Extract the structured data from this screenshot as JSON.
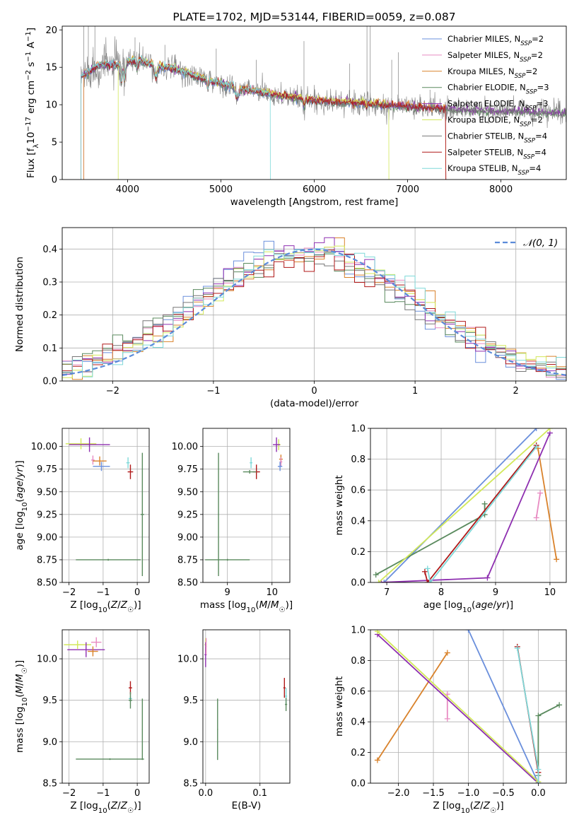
{
  "colors": {
    "observed": "#808080",
    "chabrier_miles": "#6a8fdc",
    "salpeter_miles": "#e88bc2",
    "kroupa_miles": "#d9822b",
    "chabrier_elodie": "#5a8a5e",
    "salpeter_elodie": "#8e2fb0",
    "kroupa_elodie": "#d2e85a",
    "chabrier_stelib": "#777777",
    "salpeter_stelib": "#b01818",
    "kroupa_stelib": "#7fd9d9"
  },
  "chart_data": [
    {
      "id": "spectrum",
      "type": "line",
      "title": "PLATE=1702, MJD=53144, FIBERID=0059, z=0.087",
      "xlabel": "wavelength [Angstrom, rest frame]",
      "ylabel": "Flux [f_λ 10^-17 erg cm^-2 s^-1 A^-1]",
      "xlim": [
        3300,
        8700
      ],
      "ylim": [
        0,
        20.5
      ],
      "xticks": [
        4000,
        5000,
        6000,
        7000,
        8000
      ],
      "yticks": [
        0,
        5,
        10,
        15,
        20
      ],
      "grid": false,
      "legend_position": "top-right",
      "continuum": [
        [
          3500,
          13.8
        ],
        [
          3700,
          15.3
        ],
        [
          3900,
          15.4
        ],
        [
          4100,
          16.0
        ],
        [
          4300,
          15.2
        ],
        [
          4500,
          14.8
        ],
        [
          4800,
          13.5
        ],
        [
          5000,
          12.8
        ],
        [
          5200,
          12.2
        ],
        [
          5500,
          11.5
        ],
        [
          6000,
          10.6
        ],
        [
          6500,
          10.2
        ],
        [
          7000,
          9.8
        ],
        [
          7500,
          9.4
        ],
        [
          8000,
          9.2
        ],
        [
          8500,
          9.0
        ],
        [
          8700,
          8.9
        ]
      ],
      "series": [
        {
          "name": "Chabrier MILES",
          "nssp": "2",
          "color_key": "chabrier_miles"
        },
        {
          "name": "Salpeter MILES",
          "nssp": "2",
          "color_key": "salpeter_miles"
        },
        {
          "name": "Kroupa MILES",
          "nssp": "2",
          "color_key": "kroupa_miles"
        },
        {
          "name": "Chabrier ELODIE",
          "nssp": "3",
          "color_key": "chabrier_elodie"
        },
        {
          "name": "Salpeter ELODIE",
          "nssp": "3",
          "color_key": "salpeter_elodie"
        },
        {
          "name": "Kroupa ELODIE",
          "nssp": "2",
          "color_key": "kroupa_elodie"
        },
        {
          "name": "Chabrier STELIB",
          "nssp": "4",
          "color_key": "chabrier_stelib"
        },
        {
          "name": "Salpeter STELIB",
          "nssp": "4",
          "color_key": "salpeter_stelib"
        },
        {
          "name": "Kroupa STELIB",
          "nssp": "4",
          "color_key": "kroupa_stelib"
        }
      ]
    },
    {
      "id": "residuals",
      "type": "histogram",
      "xlabel": "(data-model)/error",
      "ylabel": "Normed distribution",
      "xlim": [
        -2.5,
        2.5
      ],
      "ylim": [
        0,
        0.465
      ],
      "xticks": [
        -2,
        -1,
        0,
        1,
        2
      ],
      "yticks": [
        0.0,
        0.1,
        0.2,
        0.3,
        0.4
      ],
      "grid": true,
      "legend_position": "top-right",
      "reference": {
        "name": "𝒩(0, 1)",
        "mean": 0,
        "sigma": 1
      },
      "bin_width": 0.1
    },
    {
      "id": "age_vs_z",
      "type": "errorbar",
      "xlabel": "Z [log10(Z/Z☉)]",
      "ylabel": "age [log10(age/yr)]",
      "xlim": [
        -2.2,
        0.35
      ],
      "ylim": [
        8.5,
        10.2
      ],
      "xticks": [
        -2,
        -1,
        0
      ],
      "yticks": [
        8.5,
        8.75,
        9.0,
        9.25,
        9.5,
        9.75,
        10.0
      ],
      "grid": true,
      "points": [
        {
          "color_key": "kroupa_elodie",
          "x": -1.65,
          "xerr": 0.45,
          "y": 10.03,
          "yerr": 0.06
        },
        {
          "color_key": "salpeter_elodie",
          "x": -1.4,
          "xerr": 0.6,
          "y": 10.02,
          "yerr": 0.08
        },
        {
          "color_key": "salpeter_miles",
          "x": -1.3,
          "xerr": 0.05,
          "y": 9.85,
          "yerr": 0.05
        },
        {
          "color_key": "kroupa_miles",
          "x": -1.1,
          "xerr": 0.2,
          "y": 9.84,
          "yerr": 0.05
        },
        {
          "color_key": "chabrier_miles",
          "x": -1.05,
          "xerr": 0.25,
          "y": 9.78,
          "yerr": 0.05
        },
        {
          "color_key": "kroupa_stelib",
          "x": -0.27,
          "xerr": 0.05,
          "y": 9.82,
          "yerr": 0.06
        },
        {
          "color_key": "salpeter_stelib",
          "x": -0.2,
          "xerr": 0.08,
          "y": 9.72,
          "yerr": 0.08
        },
        {
          "color_key": "chabrier_elodie",
          "x": -0.85,
          "xerr": 0.95,
          "y": 8.75,
          "yerr": 0.01
        },
        {
          "color_key": "chabrier_elodie",
          "x": 0.15,
          "xerr": 0.05,
          "y": 9.25,
          "yerr": 0.68
        }
      ]
    },
    {
      "id": "age_vs_mass",
      "type": "errorbar",
      "xlabel": "mass [log10(M/M☉)]",
      "ylabel": "",
      "xlim": [
        8.45,
        10.4
      ],
      "ylim": [
        8.5,
        10.2
      ],
      "xticks": [
        9,
        10
      ],
      "yticks": [
        8.5,
        8.75,
        9.0,
        9.25,
        9.5,
        9.75,
        10.0
      ],
      "grid": true,
      "points": [
        {
          "color_key": "kroupa_elodie",
          "x": 10.15,
          "xerr": 0.04,
          "y": 10.02,
          "yerr": 0.06
        },
        {
          "color_key": "salpeter_elodie",
          "x": 10.1,
          "xerr": 0.08,
          "y": 10.02,
          "yerr": 0.08
        },
        {
          "color_key": "kroupa_miles",
          "x": 10.2,
          "xerr": 0.04,
          "y": 9.86,
          "yerr": 0.05
        },
        {
          "color_key": "salpeter_miles",
          "x": 10.2,
          "xerr": 0.03,
          "y": 9.83,
          "yerr": 0.05
        },
        {
          "color_key": "chabrier_miles",
          "x": 10.18,
          "xerr": 0.05,
          "y": 9.78,
          "yerr": 0.05
        },
        {
          "color_key": "kroupa_stelib",
          "x": 9.53,
          "xerr": 0.03,
          "y": 9.82,
          "yerr": 0.06
        },
        {
          "color_key": "salpeter_stelib",
          "x": 9.65,
          "xerr": 0.08,
          "y": 9.72,
          "yerr": 0.08
        },
        {
          "color_key": "chabrier_elodie",
          "x": 9.5,
          "xerr": 0.15,
          "y": 9.72,
          "yerr": 0.02
        },
        {
          "color_key": "chabrier_elodie",
          "x": 9.0,
          "xerr": 0.5,
          "y": 8.75,
          "yerr": 0.01
        },
        {
          "color_key": "chabrier_elodie",
          "x": 8.8,
          "xerr": 0.01,
          "y": 9.25,
          "yerr": 0.68
        }
      ]
    },
    {
      "id": "massweight_vs_age",
      "type": "line",
      "xlabel": "age [log10(age/yr)]",
      "ylabel": "mass weight",
      "xlim": [
        6.7,
        10.3
      ],
      "ylim": [
        0,
        1.0
      ],
      "xticks": [
        7,
        8,
        9,
        10
      ],
      "yticks": [
        0.0,
        0.2,
        0.4,
        0.6,
        0.8,
        1.0
      ],
      "grid": true,
      "series": [
        {
          "color_key": "chabrier_miles",
          "points": [
            [
              6.95,
              0.0
            ],
            [
              9.75,
              1.0
            ]
          ]
        },
        {
          "color_key": "salpeter_miles",
          "points": [
            [
              9.75,
              0.42
            ],
            [
              9.82,
              0.58
            ]
          ]
        },
        {
          "color_key": "kroupa_miles",
          "points": [
            [
              9.78,
              0.87
            ],
            [
              10.12,
              0.15
            ]
          ]
        },
        {
          "color_key": "chabrier_elodie",
          "points": [
            [
              6.8,
              0.05
            ],
            [
              8.8,
              0.44
            ],
            [
              8.8,
              0.51
            ]
          ]
        },
        {
          "color_key": "salpeter_elodie",
          "points": [
            [
              6.9,
              0.0
            ],
            [
              8.85,
              0.03
            ],
            [
              10.0,
              0.97
            ]
          ]
        },
        {
          "color_key": "kroupa_elodie",
          "points": [
            [
              6.85,
              0.0
            ],
            [
              10.0,
              1.0
            ]
          ]
        },
        {
          "color_key": "salpeter_stelib",
          "points": [
            [
              7.7,
              0.07
            ],
            [
              7.75,
              0.0
            ],
            [
              9.75,
              0.89
            ]
          ]
        },
        {
          "color_key": "kroupa_stelib",
          "points": [
            [
              7.75,
              0.09
            ],
            [
              7.8,
              0.0
            ],
            [
              9.75,
              0.88
            ]
          ]
        }
      ]
    },
    {
      "id": "mass_vs_z",
      "type": "errorbar",
      "xlabel": "Z [log10(Z/Z☉)]",
      "ylabel": "mass [log10(M/M☉)]",
      "xlim": [
        -2.2,
        0.35
      ],
      "ylim": [
        8.5,
        10.35
      ],
      "xticks": [
        -2,
        -1,
        0
      ],
      "yticks": [
        8.5,
        9.0,
        9.5,
        10.0
      ],
      "grid": true,
      "points": [
        {
          "color_key": "kroupa_elodie",
          "x": -1.75,
          "xerr": 0.4,
          "y": 10.17,
          "yerr": 0.05
        },
        {
          "color_key": "salpeter_elodie",
          "x": -1.5,
          "xerr": 0.55,
          "y": 10.11,
          "yerr": 0.09
        },
        {
          "color_key": "salpeter_miles",
          "x": -1.2,
          "xerr": 0.15,
          "y": 10.2,
          "yerr": 0.06
        },
        {
          "color_key": "kroupa_miles",
          "x": -1.3,
          "xerr": 0.15,
          "y": 10.09,
          "yerr": 0.06
        },
        {
          "color_key": "salpeter_stelib",
          "x": -0.2,
          "xerr": 0.05,
          "y": 9.65,
          "yerr": 0.08
        },
        {
          "color_key": "kroupa_stelib",
          "x": -0.2,
          "xerr": 0.05,
          "y": 9.52,
          "yerr": 0.04
        },
        {
          "color_key": "chabrier_elodie",
          "x": -0.2,
          "xerr": 0.05,
          "y": 9.5,
          "yerr": 0.1
        },
        {
          "color_key": "chabrier_elodie",
          "x": -0.8,
          "xerr": 1.0,
          "y": 8.79,
          "yerr": 0.01
        },
        {
          "color_key": "chabrier_elodie",
          "x": 0.15,
          "xerr": 0.01,
          "y": 9.15,
          "yerr": 0.37
        }
      ]
    },
    {
      "id": "mass_vs_ebv",
      "type": "errorbar",
      "xlabel": "E(B-V)",
      "ylabel": "",
      "xlim": [
        -0.005,
        0.155
      ],
      "ylim": [
        8.5,
        10.35
      ],
      "xticks": [
        0.0,
        0.1
      ],
      "yticks": [
        8.5,
        9.0,
        9.5,
        10.0
      ],
      "grid": true,
      "points": [
        {
          "color_key": "kroupa_elodie",
          "x": 0.0,
          "xerr": 0.002,
          "y": 10.17,
          "yerr": 0.08
        },
        {
          "color_key": "salpeter_elodie",
          "x": 0.0,
          "xerr": 0.002,
          "y": 10.05,
          "yerr": 0.15
        },
        {
          "color_key": "salpeter_miles",
          "x": 0.001,
          "xerr": 0.001,
          "y": 10.15,
          "yerr": 0.1
        },
        {
          "color_key": "salpeter_stelib",
          "x": 0.145,
          "xerr": 0.002,
          "y": 9.65,
          "yerr": 0.12
        },
        {
          "color_key": "kroupa_stelib",
          "x": 0.148,
          "xerr": 0.002,
          "y": 9.55,
          "yerr": 0.1
        },
        {
          "color_key": "chabrier_elodie",
          "x": 0.148,
          "xerr": 0.002,
          "y": 9.45,
          "yerr": 0.08
        },
        {
          "color_key": "chabrier_elodie",
          "x": 0.022,
          "xerr": 0.001,
          "y": 9.15,
          "yerr": 0.37
        }
      ]
    },
    {
      "id": "massweight_vs_z",
      "type": "line",
      "xlabel": "Z [log10(Z/Z☉)]",
      "ylabel": "mass weight",
      "xlim": [
        -2.4,
        0.4
      ],
      "ylim": [
        0,
        1.0
      ],
      "xticks": [
        -2.0,
        -1.5,
        -1.0,
        -0.5,
        0.0
      ],
      "yticks": [
        0.0,
        0.2,
        0.4,
        0.6,
        0.8,
        1.0
      ],
      "grid": true,
      "series": [
        {
          "color_key": "chabrier_miles",
          "points": [
            [
              -1.0,
              1.0
            ],
            [
              0.0,
              0.0
            ]
          ]
        },
        {
          "color_key": "salpeter_miles",
          "points": [
            [
              -1.3,
              0.58
            ],
            [
              -1.3,
              0.42
            ]
          ]
        },
        {
          "color_key": "kroupa_miles",
          "points": [
            [
              -2.3,
              0.15
            ],
            [
              -1.3,
              0.85
            ]
          ]
        },
        {
          "color_key": "chabrier_elodie",
          "points": [
            [
              0.3,
              0.51
            ],
            [
              0.0,
              0.44
            ],
            [
              0.0,
              0.05
            ]
          ]
        },
        {
          "color_key": "salpeter_elodie",
          "points": [
            [
              -2.3,
              0.97
            ],
            [
              0.0,
              0.0
            ]
          ]
        },
        {
          "color_key": "kroupa_elodie",
          "points": [
            [
              -2.3,
              0.99
            ],
            [
              0.0,
              0.01
            ]
          ]
        },
        {
          "color_key": "salpeter_stelib",
          "points": [
            [
              -0.3,
              0.89
            ],
            [
              0.0,
              0.07
            ],
            [
              0.0,
              0.0
            ]
          ]
        },
        {
          "color_key": "kroupa_stelib",
          "points": [
            [
              -0.3,
              0.88
            ],
            [
              0.0,
              0.09
            ],
            [
              0.0,
              0.0
            ]
          ]
        }
      ]
    }
  ]
}
